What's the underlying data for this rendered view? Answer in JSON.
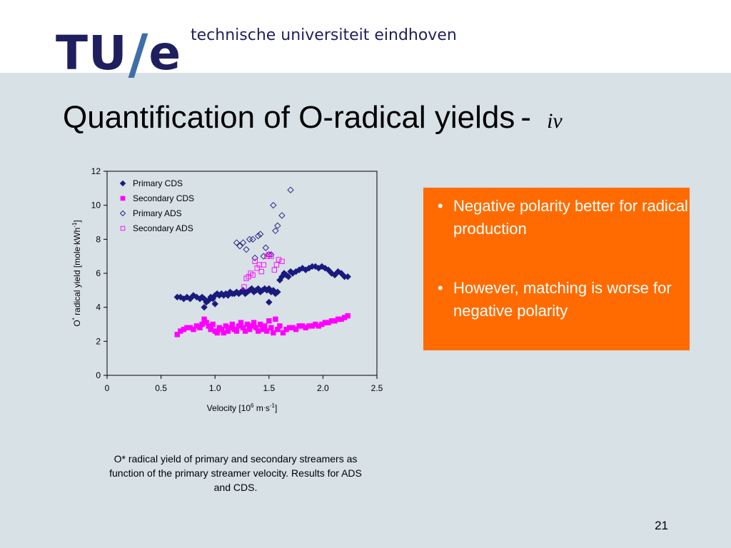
{
  "header": {
    "logo": {
      "tu": "TU",
      "slash": "/",
      "e": "e"
    },
    "university": "technische universiteit eindhoven"
  },
  "slide": {
    "title": "Quantification of O-radical yields",
    "title_sep": "-",
    "title_suffix": "iv",
    "page_number": "21"
  },
  "bullets": [
    {
      "text": "Negative polarity better for radical production"
    },
    {
      "text": "However, matching is worse for negative polarity"
    }
  ],
  "caption": "O* radical yield of primary and secondary streamers as function of the primary streamer velocity. Results for ADS and CDS.",
  "colors": {
    "navy": "#1a1a7e",
    "magenta": "#ff00ff",
    "accent": "#ff6b00",
    "brand": "#1f1f5f"
  },
  "chart_data": {
    "type": "scatter",
    "xlabel_parts": {
      "pre": "Velocity [10",
      "sup1": "6",
      "mid": " m",
      "dot": "·",
      "s": "s",
      "sup2": "-1",
      "post": "]"
    },
    "ylabel_parts": {
      "pre": "O",
      "sup0": "*",
      "mid": " radical yield [mole",
      "dot": "·",
      "k": "kWh",
      "sup": "-1",
      "post": "]"
    },
    "xlim": [
      0,
      2.5
    ],
    "ylim": [
      0,
      12
    ],
    "x_ticks": [
      "0",
      "0.5",
      "1.0",
      "1.5",
      "2.0",
      "2.5"
    ],
    "y_ticks": [
      "0",
      "2",
      "4",
      "6",
      "8",
      "10",
      "12"
    ],
    "legend_position": "top-left",
    "series": [
      {
        "name": "Primary CDS",
        "marker": "diamond-filled",
        "color": "#1a1a7e",
        "x": [
          0.65,
          0.68,
          0.71,
          0.74,
          0.77,
          0.8,
          0.83,
          0.86,
          0.88,
          0.9,
          0.92,
          0.94,
          0.96,
          0.98,
          1.0,
          1.02,
          1.04,
          1.06,
          1.08,
          1.1,
          1.12,
          1.14,
          1.16,
          1.18,
          1.2,
          1.22,
          1.24,
          1.26,
          1.28,
          1.3,
          1.32,
          1.34,
          1.36,
          1.38,
          1.4,
          1.42,
          1.44,
          1.46,
          1.48,
          1.5,
          1.52,
          1.54,
          1.56,
          1.58,
          1.6,
          1.62,
          1.64,
          1.66,
          1.68,
          1.7,
          1.72,
          1.75,
          1.78,
          1.81,
          1.84,
          1.87,
          1.9,
          1.93,
          1.96,
          1.99,
          2.02,
          2.05,
          2.08,
          2.11,
          2.14,
          2.17,
          2.2,
          2.23,
          0.9,
          1.0,
          1.5
        ],
        "y": [
          4.6,
          4.6,
          4.5,
          4.6,
          4.5,
          4.7,
          4.6,
          4.5,
          4.6,
          4.5,
          4.3,
          4.4,
          4.6,
          4.5,
          4.7,
          4.8,
          4.7,
          4.8,
          4.7,
          4.8,
          4.7,
          4.9,
          4.8,
          4.8,
          4.9,
          4.8,
          4.9,
          5.0,
          4.8,
          4.9,
          5.0,
          5.1,
          4.9,
          5.0,
          5.1,
          4.9,
          5.0,
          5.1,
          5.0,
          5.1,
          4.9,
          5.0,
          4.8,
          4.9,
          5.6,
          5.8,
          6.0,
          5.9,
          5.8,
          6.1,
          6.0,
          6.1,
          6.2,
          6.3,
          6.2,
          6.3,
          6.4,
          6.4,
          6.3,
          6.4,
          6.3,
          6.2,
          6.0,
          5.9,
          6.1,
          6.0,
          5.8,
          5.8,
          4.0,
          4.2,
          4.3
        ]
      },
      {
        "name": "Secondary CDS",
        "marker": "square-filled",
        "color": "#ff00ff",
        "x": [
          0.65,
          0.68,
          0.71,
          0.74,
          0.77,
          0.8,
          0.83,
          0.86,
          0.88,
          0.9,
          0.92,
          0.94,
          0.96,
          0.98,
          1.0,
          1.02,
          1.04,
          1.06,
          1.08,
          1.1,
          1.12,
          1.14,
          1.16,
          1.18,
          1.2,
          1.22,
          1.24,
          1.26,
          1.28,
          1.3,
          1.32,
          1.34,
          1.36,
          1.38,
          1.4,
          1.42,
          1.44,
          1.46,
          1.48,
          1.5,
          1.52,
          1.54,
          1.56,
          1.58,
          1.6,
          1.63,
          1.66,
          1.69,
          1.72,
          1.75,
          1.78,
          1.81,
          1.84,
          1.87,
          1.9,
          1.93,
          1.96,
          1.99,
          2.02,
          2.05,
          2.08,
          2.11,
          2.14,
          2.17,
          2.2,
          2.23
        ],
        "y": [
          2.4,
          2.6,
          2.7,
          2.8,
          2.8,
          2.7,
          2.9,
          2.8,
          3.0,
          3.3,
          3.1,
          2.9,
          2.7,
          3.0,
          2.6,
          2.5,
          2.8,
          2.7,
          2.5,
          2.9,
          2.6,
          2.8,
          3.0,
          2.7,
          2.6,
          2.9,
          3.1,
          2.8,
          2.6,
          3.0,
          2.7,
          2.9,
          3.1,
          2.8,
          2.6,
          3.0,
          2.7,
          2.9,
          2.6,
          3.2,
          2.8,
          2.5,
          3.3,
          2.7,
          2.9,
          2.5,
          2.7,
          2.8,
          2.8,
          2.7,
          2.9,
          2.9,
          2.8,
          2.9,
          2.9,
          3.0,
          2.9,
          3.0,
          3.1,
          3.1,
          3.2,
          3.2,
          3.3,
          3.3,
          3.4,
          3.5
        ]
      },
      {
        "name": "Primary ADS",
        "marker": "diamond-open",
        "color": "#1a1a7e",
        "x": [
          1.2,
          1.23,
          1.26,
          1.29,
          1.32,
          1.35,
          1.37,
          1.4,
          1.42,
          1.45,
          1.47,
          1.5,
          1.52,
          1.54,
          1.56,
          1.58,
          1.62,
          1.7
        ],
        "y": [
          7.8,
          7.6,
          7.8,
          7.4,
          8.0,
          8.0,
          6.9,
          8.2,
          8.3,
          7.0,
          7.5,
          7.1,
          7.1,
          10.0,
          8.5,
          8.8,
          9.4,
          10.9
        ]
      },
      {
        "name": "Secondary ADS",
        "marker": "square-open",
        "color": "#ff00ff",
        "x": [
          1.27,
          1.29,
          1.31,
          1.33,
          1.35,
          1.37,
          1.39,
          1.41,
          1.43,
          1.45,
          1.48,
          1.5,
          1.52,
          1.55,
          1.57,
          1.59,
          1.62
        ],
        "y": [
          5.2,
          5.7,
          5.8,
          6.0,
          5.9,
          6.7,
          6.3,
          6.5,
          6.1,
          6.5,
          7.0,
          7.1,
          7.0,
          6.2,
          6.5,
          6.8,
          6.7
        ]
      }
    ]
  }
}
